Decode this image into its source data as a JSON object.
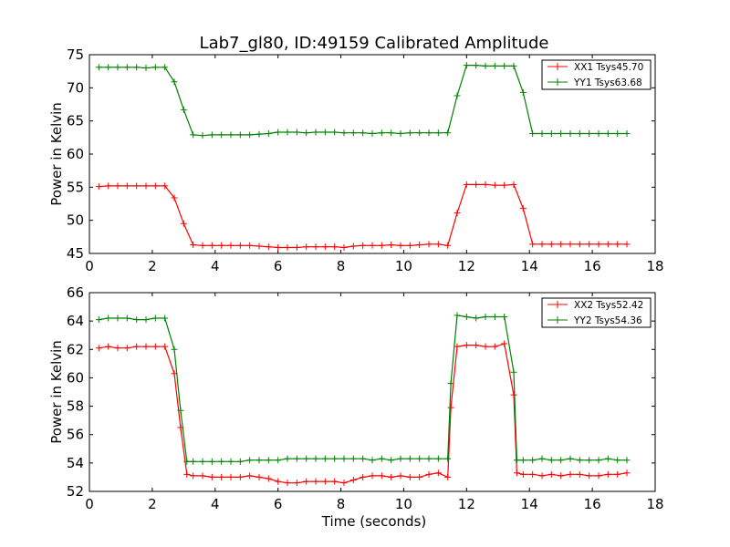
{
  "title": "Lab7_gl80, ID:49159 Calibrated Amplitude",
  "colors": {
    "red": "#ff0000",
    "green": "#008000"
  },
  "chart_data": [
    {
      "type": "line",
      "xlabel": "",
      "ylabel": "Power in Kelvin",
      "xlim": [
        0,
        18
      ],
      "ylim": [
        45,
        75
      ],
      "xticks": [
        0,
        2,
        4,
        6,
        8,
        10,
        12,
        14,
        16,
        18
      ],
      "yticks": [
        45,
        50,
        55,
        60,
        65,
        70,
        75
      ],
      "grid": false,
      "legend_position": "top-right",
      "marker": "+",
      "x": [
        0.3,
        0.6,
        0.9,
        1.2,
        1.5,
        1.8,
        2.1,
        2.4,
        2.7,
        3.0,
        3.3,
        3.6,
        3.9,
        4.2,
        4.5,
        4.8,
        5.1,
        5.4,
        5.7,
        6.0,
        6.3,
        6.6,
        6.9,
        7.2,
        7.5,
        7.8,
        8.1,
        8.4,
        8.7,
        9.0,
        9.3,
        9.6,
        9.9,
        10.2,
        10.5,
        10.8,
        11.1,
        11.4,
        11.7,
        12.0,
        12.3,
        12.6,
        12.9,
        13.2,
        13.5,
        13.8,
        14.1,
        14.4,
        14.7,
        15.0,
        15.3,
        15.6,
        15.9,
        16.2,
        16.5,
        16.8,
        17.1
      ],
      "series": [
        {
          "name": "XX1 Tsys45.70",
          "color": "#ff0000",
          "values": [
            55.1,
            55.2,
            55.2,
            55.2,
            55.2,
            55.2,
            55.2,
            55.2,
            53.4,
            49.5,
            46.3,
            46.2,
            46.2,
            46.2,
            46.2,
            46.2,
            46.2,
            46.1,
            46.0,
            45.9,
            45.9,
            45.9,
            46.0,
            46.0,
            46.0,
            46.0,
            45.9,
            46.1,
            46.2,
            46.2,
            46.2,
            46.3,
            46.2,
            46.2,
            46.3,
            46.4,
            46.4,
            46.2,
            51.1,
            55.4,
            55.4,
            55.4,
            55.3,
            55.3,
            55.4,
            51.8,
            46.4,
            46.4,
            46.4,
            46.4,
            46.4,
            46.4,
            46.4,
            46.4,
            46.4,
            46.4,
            46.4
          ]
        },
        {
          "name": "YY1 Tsys63.68",
          "color": "#008000",
          "values": [
            73.1,
            73.1,
            73.1,
            73.1,
            73.1,
            73.0,
            73.1,
            73.1,
            70.9,
            66.7,
            62.9,
            62.8,
            62.9,
            62.9,
            62.9,
            62.9,
            62.9,
            63.0,
            63.1,
            63.3,
            63.3,
            63.3,
            63.2,
            63.3,
            63.3,
            63.3,
            63.2,
            63.2,
            63.2,
            63.1,
            63.2,
            63.2,
            63.1,
            63.2,
            63.2,
            63.2,
            63.2,
            63.2,
            68.8,
            73.4,
            73.4,
            73.3,
            73.3,
            73.3,
            73.3,
            69.3,
            63.1,
            63.1,
            63.1,
            63.1,
            63.1,
            63.1,
            63.1,
            63.1,
            63.1,
            63.1,
            63.1
          ]
        }
      ]
    },
    {
      "type": "line",
      "xlabel": "Time (seconds)",
      "ylabel": "Power in Kelvin",
      "xlim": [
        0,
        18
      ],
      "ylim": [
        52,
        66
      ],
      "xticks": [
        0,
        2,
        4,
        6,
        8,
        10,
        12,
        14,
        16,
        18
      ],
      "yticks": [
        52,
        54,
        56,
        58,
        60,
        62,
        64,
        66
      ],
      "grid": false,
      "legend_position": "top-right",
      "marker": "+",
      "x": [
        0.3,
        0.6,
        0.9,
        1.2,
        1.5,
        1.8,
        2.1,
        2.4,
        2.7,
        2.9,
        3.1,
        3.3,
        3.6,
        3.9,
        4.2,
        4.5,
        4.8,
        5.1,
        5.4,
        5.7,
        6.0,
        6.3,
        6.6,
        6.9,
        7.2,
        7.5,
        7.8,
        8.1,
        8.4,
        8.7,
        9.0,
        9.3,
        9.6,
        9.9,
        10.2,
        10.5,
        10.8,
        11.1,
        11.4,
        11.5,
        11.7,
        12.0,
        12.3,
        12.6,
        12.9,
        13.2,
        13.5,
        13.6,
        13.8,
        14.1,
        14.4,
        14.7,
        15.0,
        15.3,
        15.6,
        15.9,
        16.2,
        16.5,
        16.8,
        17.1
      ],
      "series": [
        {
          "name": "XX2 Tsys52.42",
          "color": "#ff0000",
          "values": [
            62.1,
            62.2,
            62.1,
            62.1,
            62.2,
            62.2,
            62.2,
            62.2,
            60.3,
            56.5,
            53.2,
            53.1,
            53.1,
            53.0,
            53.0,
            53.0,
            53.0,
            53.1,
            53.0,
            52.9,
            52.7,
            52.6,
            52.6,
            52.7,
            52.7,
            52.7,
            52.7,
            52.6,
            52.8,
            53.0,
            53.1,
            53.1,
            53.0,
            53.1,
            53.0,
            53.0,
            53.2,
            53.3,
            53.0,
            57.9,
            62.2,
            62.3,
            62.3,
            62.2,
            62.2,
            62.4,
            58.8,
            53.3,
            53.2,
            53.2,
            53.1,
            53.2,
            53.1,
            53.2,
            53.2,
            53.1,
            53.1,
            53.2,
            53.2,
            53.3
          ]
        },
        {
          "name": "YY2 Tsys54.36",
          "color": "#008000",
          "values": [
            64.1,
            64.2,
            64.2,
            64.2,
            64.1,
            64.1,
            64.2,
            64.2,
            62.0,
            57.7,
            54.1,
            54.1,
            54.1,
            54.1,
            54.1,
            54.1,
            54.1,
            54.2,
            54.2,
            54.2,
            54.2,
            54.3,
            54.3,
            54.3,
            54.3,
            54.3,
            54.3,
            54.3,
            54.3,
            54.3,
            54.2,
            54.3,
            54.2,
            54.3,
            54.3,
            54.3,
            54.3,
            54.3,
            54.3,
            59.6,
            64.4,
            64.3,
            64.2,
            64.3,
            64.3,
            64.3,
            60.4,
            54.2,
            54.2,
            54.2,
            54.3,
            54.2,
            54.2,
            54.3,
            54.2,
            54.2,
            54.2,
            54.3,
            54.2,
            54.2
          ]
        }
      ]
    }
  ]
}
